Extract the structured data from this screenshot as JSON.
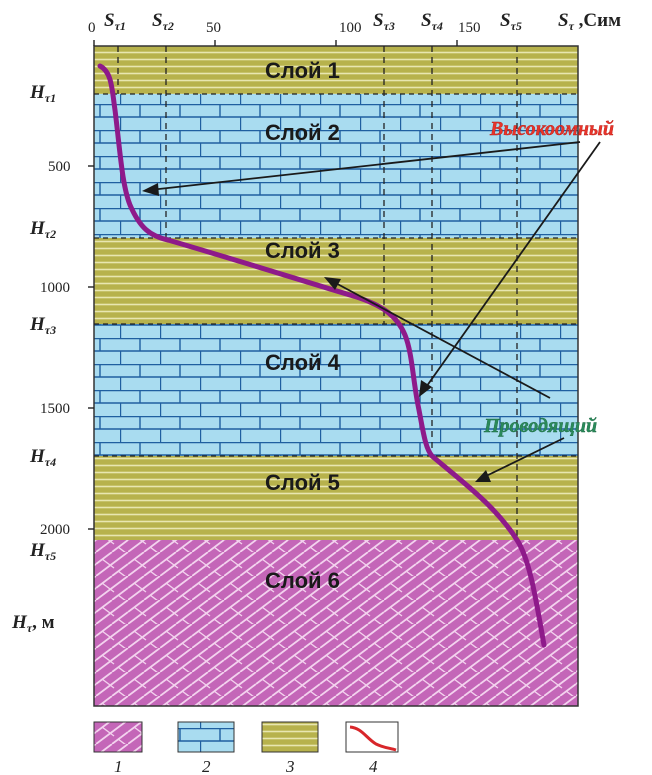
{
  "x_axis": {
    "ticks": [
      "0",
      "50",
      "100",
      "150"
    ],
    "symbols": [
      {
        "sym": "S",
        "sub": "τ1"
      },
      {
        "sym": "S",
        "sub": "τ2"
      },
      {
        "sym": "S",
        "sub": "τ3"
      },
      {
        "sym": "S",
        "sub": "τ4"
      },
      {
        "sym": "S",
        "sub": "τ5"
      }
    ],
    "unit_symbol": {
      "sym": "S",
      "sub": "τ",
      "unit": " ,Сим"
    }
  },
  "y_axis": {
    "ticks": [
      "500",
      "1000",
      "1500",
      "2000"
    ],
    "symbols": [
      {
        "sym": "H",
        "sub": "τ1"
      },
      {
        "sym": "H",
        "sub": "τ2"
      },
      {
        "sym": "H",
        "sub": "τ3"
      },
      {
        "sym": "H",
        "sub": "τ4"
      },
      {
        "sym": "H",
        "sub": "τ5"
      }
    ],
    "unit_symbol": {
      "sym": "H",
      "sub": "τ",
      "unit": ", м"
    }
  },
  "layers": [
    {
      "label": "Слой 1",
      "type": "conductive"
    },
    {
      "label": "Слой 2",
      "type": "resistive"
    },
    {
      "label": "Слой 3",
      "type": "conductive"
    },
    {
      "label": "Слой 4",
      "type": "resistive"
    },
    {
      "label": "Слой 5",
      "type": "conductive"
    },
    {
      "label": "Слой 6",
      "type": "basement"
    }
  ],
  "callouts": {
    "resistive": "Высокоомный",
    "conductive": "Проводящий"
  },
  "legend": [
    {
      "num": "1",
      "pattern": "basement"
    },
    {
      "num": "2",
      "pattern": "resistive"
    },
    {
      "num": "3",
      "pattern": "conductive"
    },
    {
      "num": "4",
      "pattern": "curve"
    }
  ],
  "colors": {
    "conductive_fill": "#b7b24c",
    "conductive_line": "#e8e6b0",
    "resistive_fill": "#a9dcf0",
    "resistive_line": "#1f5fa0",
    "basement_fill": "#c466b8",
    "basement_line": "#f3d2ee",
    "curve": "#8e1a8a",
    "callout_red": "#e8342a",
    "callout_green": "#2a8a5a"
  }
}
